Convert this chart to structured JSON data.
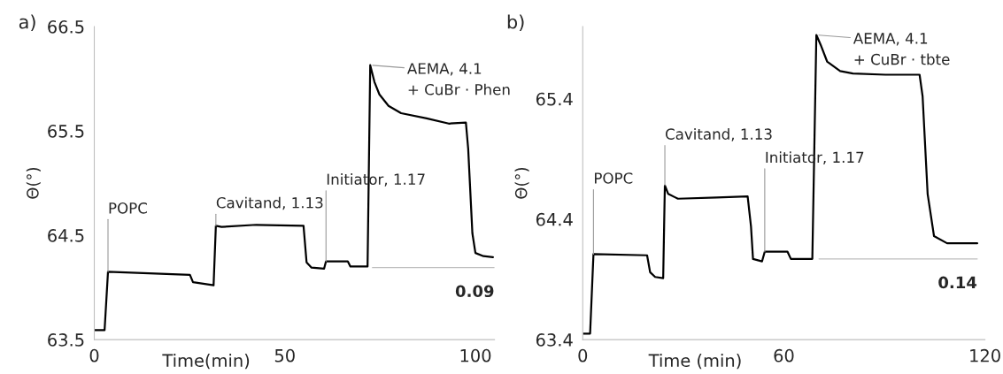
{
  "chart_data": [
    {
      "type": "line",
      "title": "a)",
      "xlabel": "Time(min)",
      "ylabel": "Θ(°)",
      "xlim": [
        0,
        105
      ],
      "xticks": [
        0,
        50,
        100
      ],
      "ylim": [
        63.5,
        66.5
      ],
      "yticks": [
        63.5,
        64.5,
        65.5,
        66.5
      ],
      "grid": false,
      "legend": false,
      "marker": "none",
      "series": [
        {
          "color": "#000000",
          "x": [
            0,
            2.7,
            3.6,
            25.1,
            25.9,
            31.3,
            31.9,
            33.4,
            42.5,
            54.9,
            55.7,
            57,
            60.3,
            60.8,
            66.5,
            67.2,
            71.7,
            72.4,
            73.5,
            74.8,
            77.2,
            80.5,
            87.2,
            93,
            97.5,
            98.1,
            99.2,
            100,
            102.1,
            104.6
          ],
          "values": [
            63.59,
            63.59,
            64.15,
            64.12,
            64.05,
            64.02,
            64.59,
            64.58,
            64.6,
            64.59,
            64.24,
            64.19,
            64.18,
            64.25,
            64.25,
            64.2,
            64.2,
            66.13,
            65.97,
            65.85,
            65.74,
            65.67,
            65.62,
            65.57,
            65.58,
            65.33,
            64.52,
            64.33,
            64.3,
            64.29
          ]
        },
        {
          "color": "#bfbfbf",
          "x": [
            73,
            105
          ],
          "values": [
            64.19,
            64.19
          ]
        }
      ],
      "annotations": [
        {
          "text": "POPC",
          "x": 3.6,
          "y": 64.15
        },
        {
          "text": "Cavitand, 1.13",
          "x": 31.9,
          "y": 64.59
        },
        {
          "text": "Initiator, 1.17",
          "x": 60.8,
          "y": 64.25
        },
        {
          "text": "AEMA, 4.1\n+ CuBr · Phen",
          "x": 72.4,
          "y": 66.13
        },
        {
          "text": "0.09",
          "x": 105,
          "y": 64.19
        }
      ]
    },
    {
      "type": "line",
      "title": "b)",
      "xlabel": "Time (min)",
      "ylabel": "Θ(°)",
      "xlim": [
        0,
        120
      ],
      "xticks": [
        0,
        60,
        120
      ],
      "ylim": [
        63.4,
        66.0
      ],
      "yticks": [
        63.4,
        64.4,
        65.4
      ],
      "grid": false,
      "legend": false,
      "marker": "none",
      "series": [
        {
          "color": "#000000",
          "x": [
            0,
            2.2,
            3.2,
            19.2,
            20.1,
            21.6,
            24,
            24.5,
            25.5,
            28.4,
            40,
            49.2,
            50.2,
            50.8,
            53.5,
            54.3,
            61.1,
            62.1,
            68.5,
            69.7,
            70.96,
            72.9,
            76.8,
            80.6,
            90.3,
            100.5,
            101.4,
            102.9,
            104.8,
            108.7,
            117.7
          ],
          "values": [
            63.45,
            63.45,
            64.11,
            64.1,
            63.96,
            63.92,
            63.91,
            64.68,
            64.61,
            64.57,
            64.58,
            64.59,
            64.34,
            64.07,
            64.05,
            64.13,
            64.13,
            64.07,
            64.07,
            65.93,
            65.85,
            65.71,
            65.63,
            65.61,
            65.6,
            65.6,
            65.42,
            64.61,
            64.26,
            64.2,
            64.2
          ]
        },
        {
          "color": "#bfbfbf",
          "x": [
            70.5,
            117.7
          ],
          "values": [
            64.07,
            64.07
          ]
        }
      ],
      "annotations": [
        {
          "text": "POPC",
          "x": 3.2,
          "y": 64.11
        },
        {
          "text": "Cavitand, 1.13",
          "x": 24.5,
          "y": 64.68
        },
        {
          "text": "Initiator, 1.17",
          "x": 54.3,
          "y": 64.13
        },
        {
          "text": "AEMA, 4.1\n+ CuBr · tbte",
          "x": 69.7,
          "y": 65.93
        },
        {
          "text": "0.14",
          "x": 117.7,
          "y": 64.07
        }
      ]
    }
  ]
}
